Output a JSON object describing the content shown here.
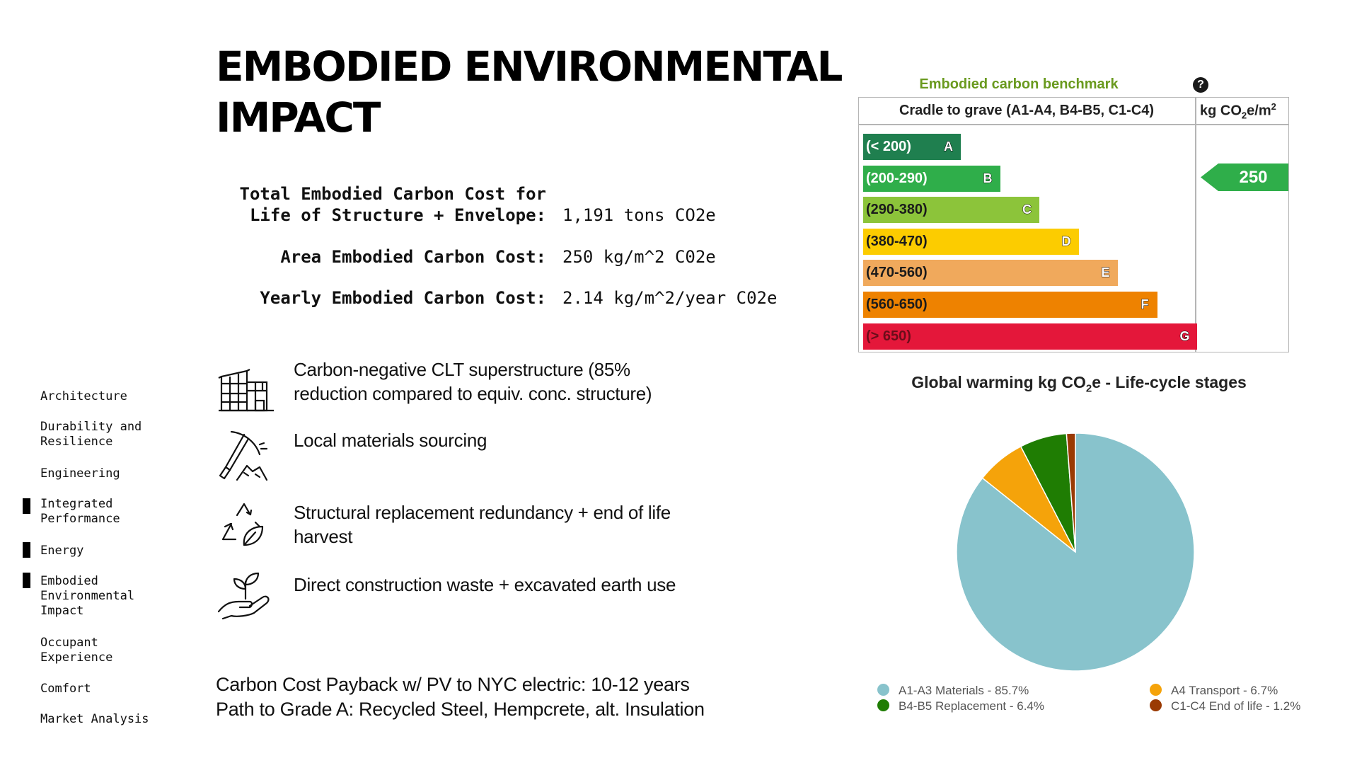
{
  "title_lines": [
    "EMBODIED ENVIRONMENTAL",
    "IMPACT"
  ],
  "metrics": [
    {
      "label_lines": [
        "Total Embodied Carbon Cost for",
        "Life of Structure + Envelope:"
      ],
      "value": "1,191 tons CO2e"
    },
    {
      "label_lines": [
        "Area Embodied Carbon Cost:"
      ],
      "value": "250 kg/m^2 C02e"
    },
    {
      "label_lines": [
        "Yearly Embodied Carbon Cost:"
      ],
      "value": "2.14 kg/m^2/year C02e"
    }
  ],
  "sidebar": {
    "items": [
      {
        "label": "Architecture",
        "marked": false
      },
      {
        "label": "Durability and Resilience",
        "marked": false
      },
      {
        "label": "Engineering",
        "marked": false
      },
      {
        "label": "Integrated Performance",
        "marked": true
      },
      {
        "label": "Energy",
        "marked": true
      },
      {
        "label": "Embodied Environmental Impact",
        "marked": true
      },
      {
        "label": "Occupant Experience",
        "marked": false
      },
      {
        "label": "Comfort",
        "marked": false
      },
      {
        "label": "Market Analysis",
        "marked": false
      }
    ]
  },
  "features": [
    {
      "icon": "building-icon",
      "text": "Carbon-negative CLT superstructure (85% reduction compared to equiv. conc. structure)"
    },
    {
      "icon": "pickaxe-icon",
      "text": "Local materials sourcing"
    },
    {
      "icon": "recycle-leaf-icon",
      "text": "Structural replacement redundancy + end of life harvest"
    },
    {
      "icon": "hand-plant-icon",
      "text": "Direct construction waste + excavated earth use"
    }
  ],
  "footer": {
    "line1": "Carbon Cost Payback w/ PV to NYC electric: 10-12 years",
    "line2": "Path to Grade A: Recycled Steel, Hempcrete, alt. Insulation"
  },
  "chart_data": [
    {
      "type": "bar",
      "title": "Embodied carbon benchmark",
      "help_icon": "help-circle-icon",
      "header_left": "Cradle to grave (A1-A4, B4-B5, C1-C4)",
      "header_right": {
        "prefix": "kg CO",
        "sub": "2",
        "mid": "e/m",
        "sup": "2"
      },
      "categories": [
        "(< 200)",
        "(200-290)",
        "(290-380)",
        "(380-470)",
        "(470-560)",
        "(560-650)",
        "(> 650)"
      ],
      "grades": [
        "A",
        "B",
        "C",
        "D",
        "E",
        "F",
        "G"
      ],
      "colors": [
        "#1f7f4f",
        "#2fae4a",
        "#8cc43a",
        "#fccc00",
        "#f0a95c",
        "#ee8200",
        "#e4173a"
      ],
      "rating": {
        "value": "250",
        "grade": "B",
        "color": "#2fae4a"
      }
    },
    {
      "type": "pie",
      "title": {
        "prefix": "Global warming kg CO",
        "sub": "2",
        "suffix": "e - Life-cycle stages"
      },
      "series": [
        {
          "name": "A1-A3 Materials",
          "value": 85.7,
          "color": "#88c3cc",
          "legend": "A1-A3 Materials - 85.7%"
        },
        {
          "name": "A4 Transport",
          "value": 6.7,
          "color": "#f5a30a",
          "legend": "A4 Transport - 6.7%"
        },
        {
          "name": "B4-B5 Replacement",
          "value": 6.4,
          "color": "#1f7d03",
          "legend": "B4-B5 Replacement - 6.4%"
        },
        {
          "name": "C1-C4 End of life",
          "value": 1.2,
          "color": "#9a3a03",
          "legend": "C1-C4 End of life - 1.2%"
        }
      ],
      "legend_placement": "bottom"
    }
  ]
}
